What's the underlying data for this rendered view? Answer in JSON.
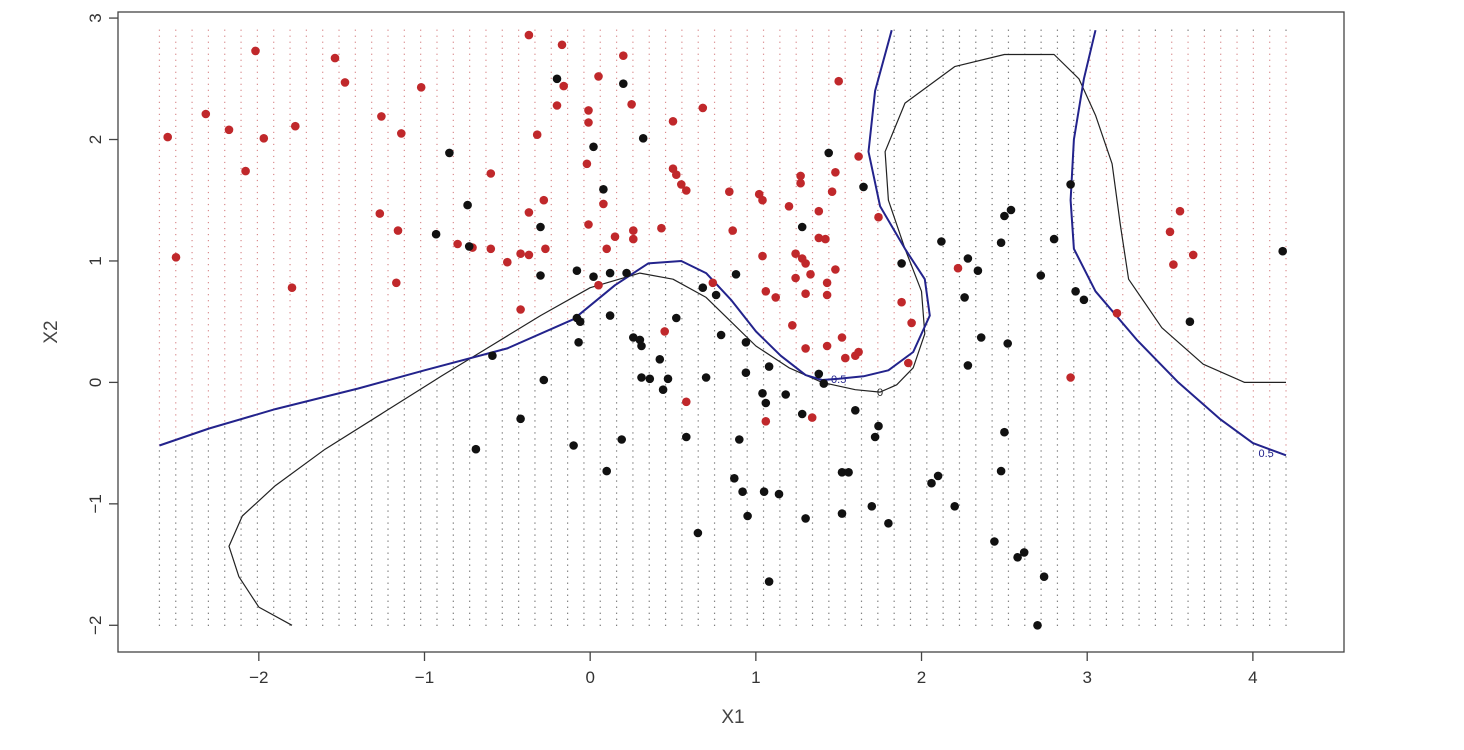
{
  "chart_data": {
    "type": "scatter",
    "title": "",
    "xlabel": "X1",
    "ylabel": "X2",
    "xlim": [
      -2.85,
      4.55
    ],
    "ylim": [
      -2.22,
      3.05
    ],
    "xticks": [
      -2,
      -1,
      0,
      1,
      2,
      3,
      4
    ],
    "yticks": [
      -2,
      -1,
      0,
      1,
      2,
      3
    ],
    "xtick_labels": [
      "−2",
      "−1",
      "0",
      "1",
      "2",
      "3",
      "4"
    ],
    "ytick_labels": [
      "−2",
      "−1",
      "0",
      "1",
      "2",
      "3"
    ],
    "grid": {
      "description": "background grid of small dots colored by predicted class",
      "x_range": [
        -2.6,
        4.2
      ],
      "y_range": [
        -2.0,
        2.9
      ],
      "x_count": 70,
      "y_count": 100
    },
    "colors": {
      "class_red": "#c0282b",
      "class_black": "#111111",
      "contour_black": "#222222",
      "contour_blue": "#23238c"
    },
    "series": [
      {
        "class": "red",
        "points": [
          [
            -2.55,
            2.02
          ],
          [
            -2.5,
            1.03
          ],
          [
            -2.32,
            2.21
          ],
          [
            -2.18,
            2.08
          ],
          [
            -2.08,
            1.74
          ],
          [
            -2.02,
            2.73
          ],
          [
            -1.97,
            2.01
          ],
          [
            -1.8,
            0.78
          ],
          [
            -1.78,
            2.11
          ],
          [
            -1.54,
            2.67
          ],
          [
            -1.48,
            2.47
          ],
          [
            -1.27,
            1.39
          ],
          [
            -1.26,
            2.19
          ],
          [
            -1.17,
            0.82
          ],
          [
            -1.16,
            1.25
          ],
          [
            -1.14,
            2.05
          ],
          [
            -1.02,
            2.43
          ],
          [
            -0.8,
            1.14
          ],
          [
            -0.71,
            1.11
          ],
          [
            -0.6,
            1.1
          ],
          [
            -0.6,
            1.72
          ],
          [
            -0.5,
            0.99
          ],
          [
            -0.42,
            1.06
          ],
          [
            -0.42,
            0.6
          ],
          [
            -0.37,
            1.05
          ],
          [
            -0.37,
            1.4
          ],
          [
            -0.37,
            2.86
          ],
          [
            -0.32,
            2.04
          ],
          [
            -0.28,
            1.5
          ],
          [
            -0.27,
            1.1
          ],
          [
            -0.2,
            2.28
          ],
          [
            -0.17,
            2.78
          ],
          [
            -0.16,
            2.44
          ],
          [
            -0.02,
            1.8
          ],
          [
            -0.01,
            1.3
          ],
          [
            -0.01,
            2.14
          ],
          [
            -0.01,
            2.24
          ],
          [
            0.05,
            2.52
          ],
          [
            0.05,
            0.8
          ],
          [
            0.08,
            1.47
          ],
          [
            0.1,
            1.1
          ],
          [
            0.15,
            1.2
          ],
          [
            0.2,
            2.69
          ],
          [
            0.25,
            2.29
          ],
          [
            0.26,
            1.25
          ],
          [
            0.26,
            1.18
          ],
          [
            0.43,
            1.27
          ],
          [
            0.45,
            0.42
          ],
          [
            0.5,
            2.15
          ],
          [
            0.5,
            1.76
          ],
          [
            0.52,
            1.71
          ],
          [
            0.55,
            1.63
          ],
          [
            0.58,
            1.58
          ],
          [
            0.58,
            -0.16
          ],
          [
            0.68,
            2.26
          ],
          [
            0.74,
            0.82
          ],
          [
            0.84,
            1.57
          ],
          [
            0.86,
            1.25
          ],
          [
            1.02,
            1.55
          ],
          [
            1.04,
            1.04
          ],
          [
            1.04,
            1.5
          ],
          [
            1.06,
            0.75
          ],
          [
            1.06,
            -0.32
          ],
          [
            1.12,
            0.7
          ],
          [
            1.2,
            1.45
          ],
          [
            1.22,
            0.47
          ],
          [
            1.24,
            1.06
          ],
          [
            1.24,
            0.86
          ],
          [
            1.27,
            1.7
          ],
          [
            1.27,
            1.64
          ],
          [
            1.28,
            1.02
          ],
          [
            1.3,
            0.98
          ],
          [
            1.3,
            0.73
          ],
          [
            1.3,
            0.28
          ],
          [
            1.33,
            0.89
          ],
          [
            1.34,
            -0.29
          ],
          [
            1.38,
            1.19
          ],
          [
            1.38,
            1.41
          ],
          [
            1.42,
            1.18
          ],
          [
            1.43,
            0.72
          ],
          [
            1.43,
            0.82
          ],
          [
            1.43,
            0.3
          ],
          [
            1.46,
            1.57
          ],
          [
            1.48,
            1.73
          ],
          [
            1.48,
            0.93
          ],
          [
            1.5,
            2.48
          ],
          [
            1.52,
            0.37
          ],
          [
            1.54,
            0.2
          ],
          [
            1.6,
            0.22
          ],
          [
            1.62,
            1.86
          ],
          [
            1.62,
            0.25
          ],
          [
            1.74,
            1.36
          ],
          [
            1.88,
            0.66
          ],
          [
            1.92,
            0.16
          ],
          [
            1.94,
            0.49
          ],
          [
            2.22,
            0.94
          ],
          [
            2.9,
            0.04
          ],
          [
            3.18,
            0.57
          ],
          [
            3.5,
            1.24
          ],
          [
            3.52,
            0.97
          ],
          [
            3.56,
            1.41
          ],
          [
            3.64,
            1.05
          ]
        ]
      },
      {
        "class": "black",
        "points": [
          [
            -0.85,
            1.89
          ],
          [
            -0.93,
            1.22
          ],
          [
            -0.74,
            1.46
          ],
          [
            -0.73,
            1.12
          ],
          [
            -0.69,
            -0.55
          ],
          [
            -0.59,
            0.22
          ],
          [
            -0.42,
            -0.3
          ],
          [
            -0.3,
            1.28
          ],
          [
            -0.28,
            0.02
          ],
          [
            -0.3,
            0.88
          ],
          [
            -0.2,
            2.5
          ],
          [
            -0.1,
            -0.52
          ],
          [
            -0.08,
            0.92
          ],
          [
            -0.07,
            0.33
          ],
          [
            -0.08,
            0.53
          ],
          [
            -0.06,
            0.5
          ],
          [
            0.02,
            0.87
          ],
          [
            0.02,
            1.94
          ],
          [
            0.08,
            1.59
          ],
          [
            0.1,
            -0.73
          ],
          [
            0.12,
            0.9
          ],
          [
            0.12,
            0.55
          ],
          [
            0.19,
            -0.47
          ],
          [
            0.2,
            2.46
          ],
          [
            0.22,
            0.9
          ],
          [
            0.26,
            0.37
          ],
          [
            0.3,
            0.35
          ],
          [
            0.31,
            0.3
          ],
          [
            0.32,
            2.01
          ],
          [
            0.31,
            0.04
          ],
          [
            0.36,
            0.03
          ],
          [
            0.42,
            0.19
          ],
          [
            0.44,
            -0.06
          ],
          [
            0.47,
            0.03
          ],
          [
            0.52,
            0.53
          ],
          [
            0.58,
            -0.45
          ],
          [
            0.65,
            -1.24
          ],
          [
            0.68,
            0.78
          ],
          [
            0.7,
            0.04
          ],
          [
            0.76,
            0.72
          ],
          [
            0.79,
            0.39
          ],
          [
            0.87,
            -0.79
          ],
          [
            0.88,
            0.89
          ],
          [
            0.9,
            -0.47
          ],
          [
            0.92,
            -0.9
          ],
          [
            0.94,
            0.33
          ],
          [
            0.94,
            0.08
          ],
          [
            0.95,
            -1.1
          ],
          [
            1.04,
            -0.09
          ],
          [
            1.05,
            -0.9
          ],
          [
            1.06,
            -0.17
          ],
          [
            1.08,
            -1.64
          ],
          [
            1.08,
            0.13
          ],
          [
            1.14,
            -0.92
          ],
          [
            1.18,
            -0.1
          ],
          [
            1.28,
            -0.26
          ],
          [
            1.28,
            1.28
          ],
          [
            1.3,
            -1.12
          ],
          [
            1.38,
            0.07
          ],
          [
            1.41,
            -0.01
          ],
          [
            1.44,
            1.89
          ],
          [
            1.52,
            -0.74
          ],
          [
            1.52,
            -1.08
          ],
          [
            1.56,
            -0.74
          ],
          [
            1.6,
            -0.23
          ],
          [
            1.65,
            1.61
          ],
          [
            1.7,
            -1.02
          ],
          [
            1.72,
            -0.45
          ],
          [
            1.74,
            -0.36
          ],
          [
            1.8,
            -1.16
          ],
          [
            1.88,
            0.98
          ],
          [
            2.06,
            -0.83
          ],
          [
            2.1,
            -0.77
          ],
          [
            2.12,
            1.16
          ],
          [
            2.2,
            -1.02
          ],
          [
            2.26,
            0.7
          ],
          [
            2.28,
            1.02
          ],
          [
            2.28,
            0.14
          ],
          [
            2.34,
            0.92
          ],
          [
            2.36,
            0.37
          ],
          [
            2.44,
            -1.31
          ],
          [
            2.48,
            1.15
          ],
          [
            2.48,
            -0.73
          ],
          [
            2.5,
            -0.41
          ],
          [
            2.5,
            1.37
          ],
          [
            2.52,
            0.32
          ],
          [
            2.54,
            1.42
          ],
          [
            2.58,
            -1.44
          ],
          [
            2.62,
            -1.4
          ],
          [
            2.7,
            -2.0
          ],
          [
            2.72,
            0.88
          ],
          [
            2.74,
            -1.6
          ],
          [
            2.8,
            1.18
          ],
          [
            2.9,
            1.63
          ],
          [
            2.93,
            0.75
          ],
          [
            2.98,
            0.68
          ],
          [
            3.62,
            0.5
          ],
          [
            4.18,
            1.08
          ]
        ]
      }
    ],
    "contours": [
      {
        "label": "0",
        "points": [
          [
            -1.8,
            -2.0
          ],
          [
            -2.0,
            -1.85
          ],
          [
            -2.12,
            -1.6
          ],
          [
            -2.18,
            -1.35
          ],
          [
            -2.1,
            -1.1
          ],
          [
            -1.9,
            -0.85
          ],
          [
            -1.6,
            -0.55
          ],
          [
            -1.25,
            -0.25
          ],
          [
            -0.9,
            0.05
          ],
          [
            -0.6,
            0.3
          ],
          [
            -0.3,
            0.55
          ],
          [
            0.0,
            0.78
          ],
          [
            0.3,
            0.9
          ],
          [
            0.5,
            0.85
          ],
          [
            0.7,
            0.7
          ],
          [
            0.85,
            0.5
          ],
          [
            1.0,
            0.3
          ],
          [
            1.2,
            0.12
          ],
          [
            1.4,
            0.0
          ],
          [
            1.6,
            -0.06
          ],
          [
            1.75,
            -0.08
          ],
          [
            1.85,
            -0.02
          ],
          [
            1.95,
            0.12
          ],
          [
            2.02,
            0.4
          ],
          [
            2.0,
            0.75
          ],
          [
            1.9,
            1.1
          ],
          [
            1.8,
            1.5
          ],
          [
            1.78,
            1.9
          ],
          [
            1.9,
            2.3
          ],
          [
            2.2,
            2.6
          ],
          [
            2.5,
            2.7
          ],
          [
            2.8,
            2.7
          ],
          [
            2.95,
            2.5
          ],
          [
            3.05,
            2.2
          ],
          [
            3.15,
            1.8
          ],
          [
            3.2,
            1.3
          ],
          [
            3.25,
            0.85
          ],
          [
            3.45,
            0.45
          ],
          [
            3.7,
            0.15
          ],
          [
            3.95,
            0.0
          ],
          [
            4.2,
            0.0
          ]
        ],
        "color": "#222222"
      },
      {
        "label": "0.5",
        "points": [
          [
            -2.6,
            -0.52
          ],
          [
            -2.3,
            -0.38
          ],
          [
            -1.9,
            -0.22
          ],
          [
            -1.4,
            -0.05
          ],
          [
            -1.0,
            0.1
          ],
          [
            -0.5,
            0.28
          ],
          [
            -0.1,
            0.52
          ],
          [
            0.15,
            0.8
          ],
          [
            0.35,
            0.98
          ],
          [
            0.55,
            1.0
          ],
          [
            0.7,
            0.9
          ],
          [
            0.85,
            0.68
          ],
          [
            1.0,
            0.42
          ],
          [
            1.15,
            0.22
          ],
          [
            1.3,
            0.06
          ],
          [
            1.4,
            0.02
          ],
          [
            1.5,
            0.03
          ],
          [
            1.65,
            0.05
          ],
          [
            1.8,
            0.1
          ],
          [
            1.95,
            0.25
          ],
          [
            2.05,
            0.55
          ],
          [
            2.02,
            0.85
          ],
          [
            1.9,
            1.1
          ],
          [
            1.75,
            1.45
          ],
          [
            1.68,
            1.9
          ],
          [
            1.72,
            2.4
          ],
          [
            1.82,
            2.9
          ]
        ],
        "color": "#23238c"
      },
      {
        "label": "0.5",
        "points": [
          [
            3.05,
            2.9
          ],
          [
            2.98,
            2.5
          ],
          [
            2.92,
            2.0
          ],
          [
            2.9,
            1.5
          ],
          [
            2.92,
            1.1
          ],
          [
            3.05,
            0.75
          ],
          [
            3.3,
            0.35
          ],
          [
            3.55,
            0.0
          ],
          [
            3.8,
            -0.3
          ],
          [
            4.0,
            -0.5
          ],
          [
            4.2,
            -0.6
          ]
        ],
        "color": "#23238c"
      }
    ]
  }
}
